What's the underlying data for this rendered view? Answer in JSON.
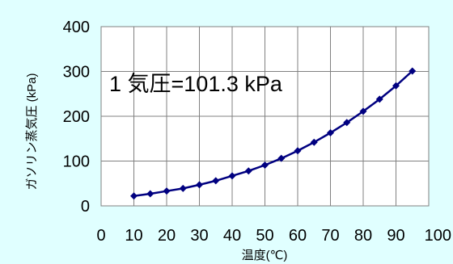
{
  "chart_data": {
    "type": "line",
    "title": "",
    "xlabel": "温度(℃)",
    "ylabel": "ガソリン蒸気圧 (kPa)",
    "xlim": [
      0,
      100
    ],
    "ylim": [
      0,
      400
    ],
    "xticks": [
      0,
      10,
      20,
      30,
      40,
      50,
      60,
      70,
      80,
      90,
      100
    ],
    "yticks": [
      0,
      100,
      200,
      300,
      400
    ],
    "grid": true,
    "legend": "none",
    "annotation": "1 気圧=101.3 kPa",
    "colors": {
      "plot_background": "#ffffff",
      "chart_background": "#e0ffff",
      "series": "#000080",
      "grid": "#808080"
    },
    "series": [
      {
        "marker": "diamond",
        "x": [
          10,
          15,
          20,
          25,
          30,
          35,
          40,
          45,
          50,
          55,
          60,
          65,
          70,
          75,
          80,
          85,
          90,
          95
        ],
        "y": [
          22,
          27,
          33,
          39,
          47,
          56,
          67,
          78,
          91,
          106,
          123,
          142,
          163,
          186,
          211,
          238,
          268,
          301
        ]
      }
    ]
  }
}
